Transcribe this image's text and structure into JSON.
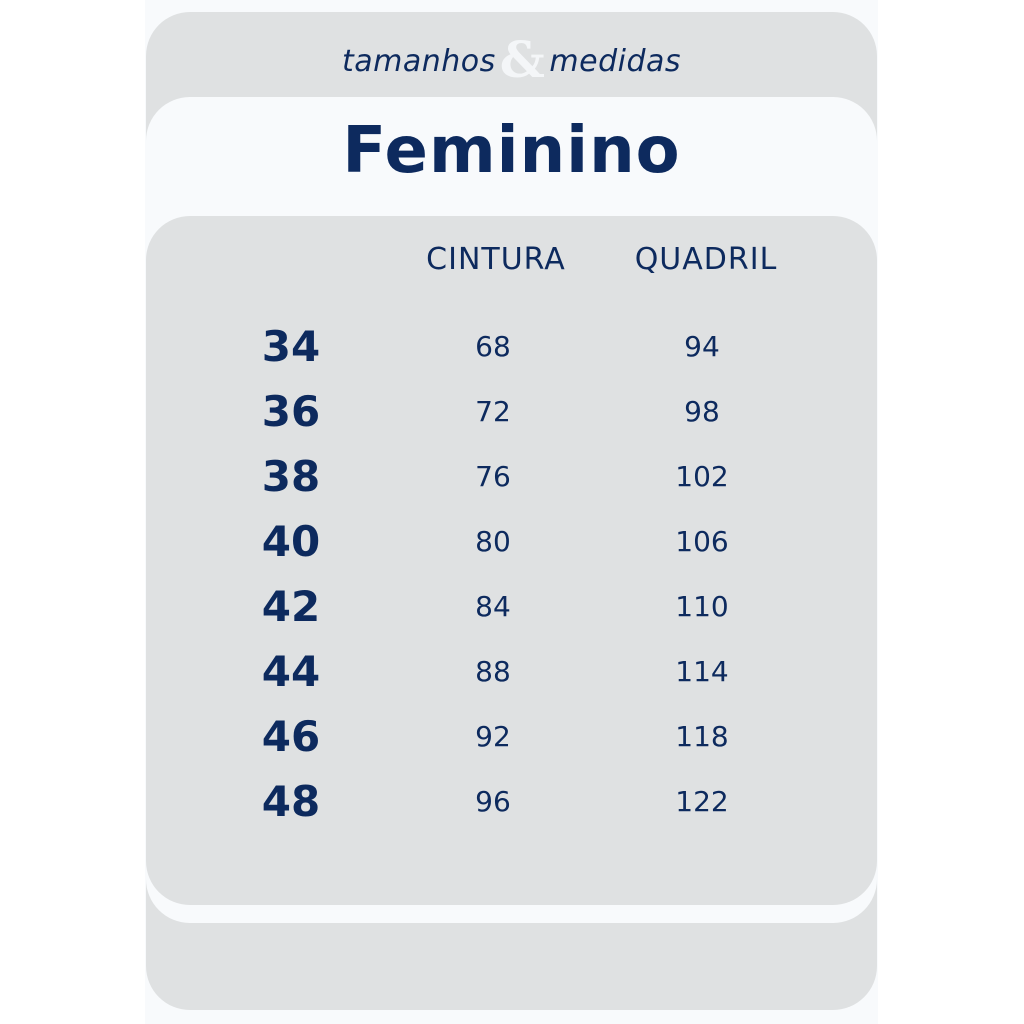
{
  "header": {
    "subtitle_left": "tamanhos",
    "subtitle_amp": "&",
    "subtitle_right": "medidas",
    "title": "Feminino"
  },
  "colors": {
    "text": "#0d2a5e",
    "panel": "#dfe1e2",
    "band": "#f8fafc"
  },
  "table": {
    "columns": [
      "CINTURA",
      "QUADRIL"
    ],
    "rows": [
      {
        "size": "34",
        "cintura": "68",
        "quadril": "94"
      },
      {
        "size": "36",
        "cintura": "72",
        "quadril": "98"
      },
      {
        "size": "38",
        "cintura": "76",
        "quadril": "102"
      },
      {
        "size": "40",
        "cintura": "80",
        "quadril": "106"
      },
      {
        "size": "42",
        "cintura": "84",
        "quadril": "110"
      },
      {
        "size": "44",
        "cintura": "88",
        "quadril": "114"
      },
      {
        "size": "46",
        "cintura": "92",
        "quadril": "118"
      },
      {
        "size": "48",
        "cintura": "96",
        "quadril": "122"
      }
    ]
  }
}
